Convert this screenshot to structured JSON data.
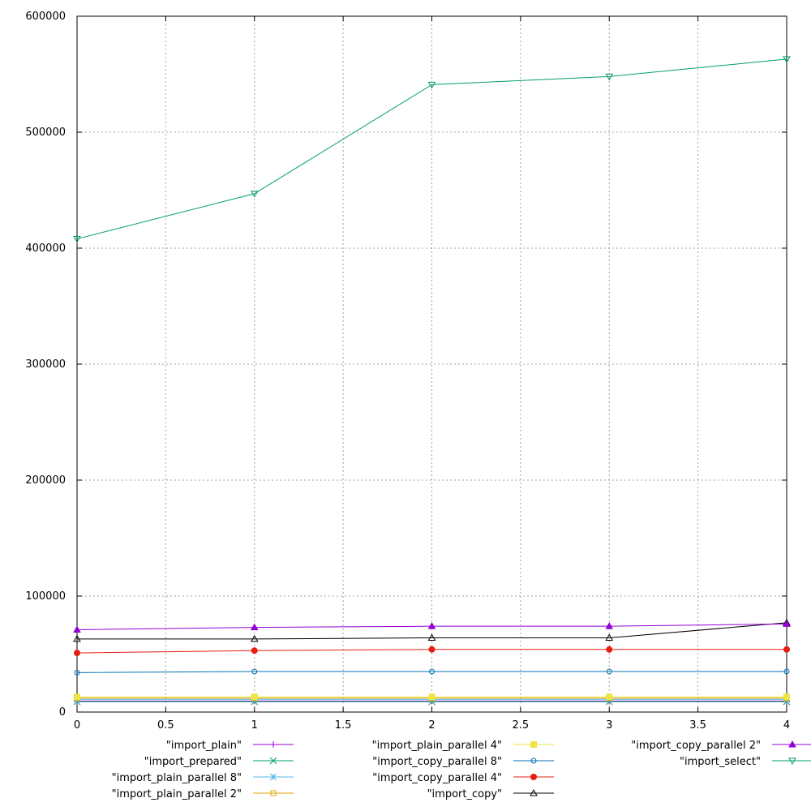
{
  "chart_data": {
    "type": "line",
    "title": "",
    "xlabel": "",
    "ylabel": "",
    "xlim": [
      0,
      4
    ],
    "ylim": [
      0,
      600000
    ],
    "x_ticks": [
      "0",
      "0.5",
      "1",
      "1.5",
      "2",
      "2.5",
      "3",
      "3.5",
      "4"
    ],
    "y_ticks": [
      "0",
      "100000",
      "200000",
      "300000",
      "400000",
      "500000",
      "600000"
    ],
    "grid": true,
    "legend_position": "bottom",
    "x": [
      0,
      1,
      2,
      3,
      4
    ],
    "series": [
      {
        "name": "\"import_plain\"",
        "color": "#9400d3",
        "marker": "plus",
        "values": [
          9500,
          9500,
          9500,
          9500,
          9500
        ]
      },
      {
        "name": "\"import_prepared\"",
        "color": "#009e73",
        "marker": "cross",
        "values": [
          9000,
          9000,
          9000,
          9000,
          9000
        ]
      },
      {
        "name": "\"import_plain_parallel 8\"",
        "color": "#56b4e9",
        "marker": "star",
        "values": [
          11000,
          11000,
          11000,
          11000,
          11000
        ]
      },
      {
        "name": "\"import_plain_parallel 2\"",
        "color": "#e69f00",
        "marker": "square-open",
        "values": [
          12000,
          12000,
          12000,
          12000,
          12000
        ]
      },
      {
        "name": "\"import_plain_parallel 4\"",
        "color": "#f0e442",
        "marker": "square-filled",
        "values": [
          13000,
          13000,
          13000,
          13000,
          13000
        ]
      },
      {
        "name": "\"import_copy_parallel 8\"",
        "color": "#0072b2",
        "marker": "circle-open",
        "values": [
          34000,
          35000,
          35000,
          35000,
          35000
        ]
      },
      {
        "name": "\"import_copy_parallel 4\"",
        "color": "#e51e10",
        "marker": "circle-filled",
        "values": [
          51000,
          53000,
          54000,
          54000,
          54000
        ]
      },
      {
        "name": "\"import_copy\"",
        "color": "#000000",
        "marker": "triangle-open",
        "values": [
          63000,
          63000,
          64000,
          64000,
          77000
        ]
      },
      {
        "name": "\"import_copy_parallel 2\"",
        "color": "#9400d3",
        "marker": "triangle-filled",
        "values": [
          71000,
          73000,
          74000,
          74000,
          76000
        ]
      },
      {
        "name": "\"import_select\"",
        "color": "#009e73",
        "marker": "triangle-down-open",
        "values": [
          408000,
          447000,
          541000,
          548000,
          563000
        ]
      }
    ]
  }
}
